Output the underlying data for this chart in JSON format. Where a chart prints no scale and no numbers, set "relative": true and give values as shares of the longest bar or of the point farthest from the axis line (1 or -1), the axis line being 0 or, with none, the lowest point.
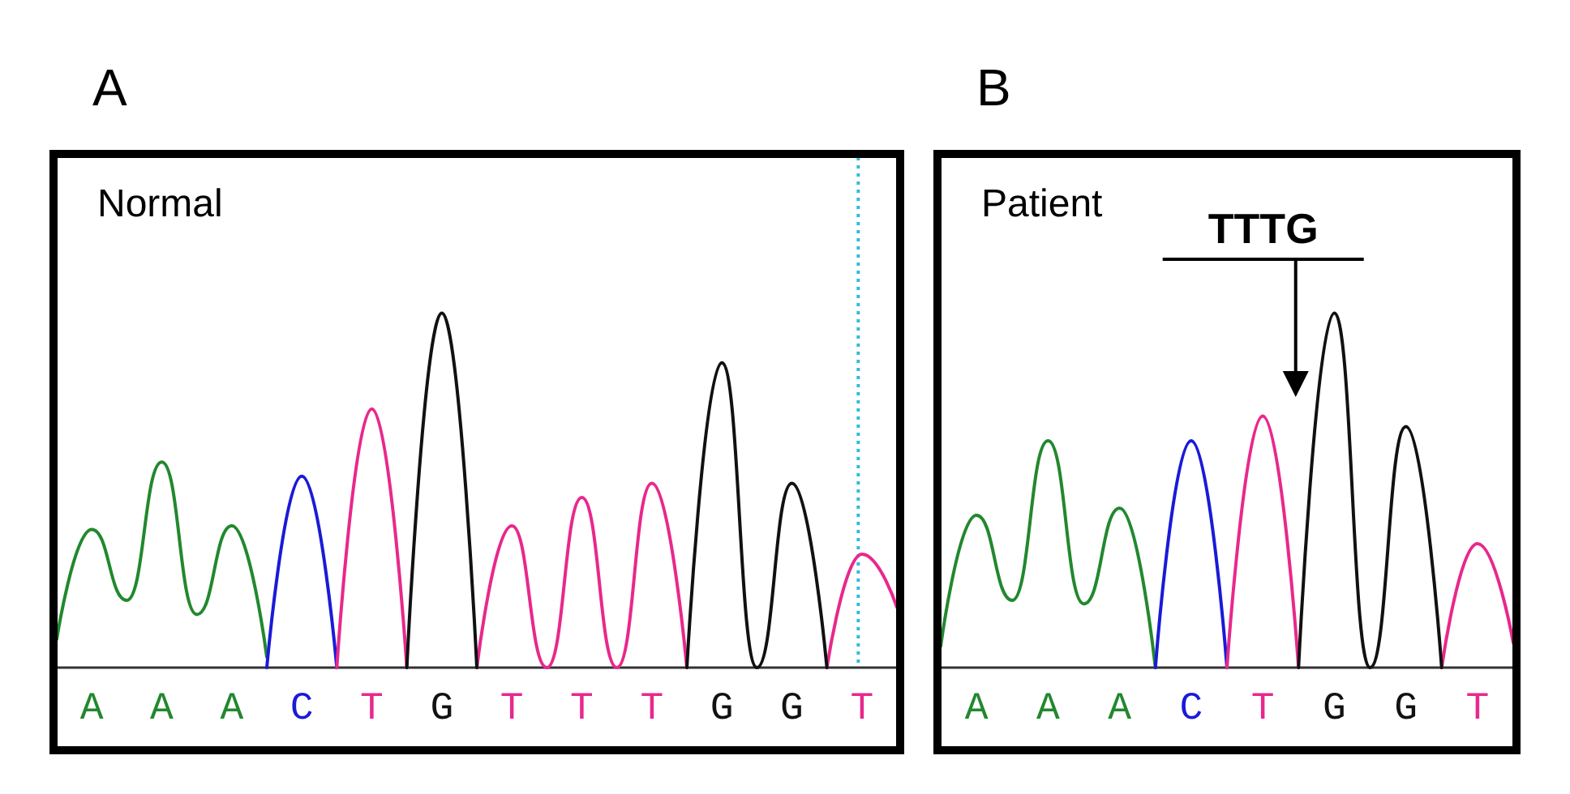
{
  "chart_data": [
    {
      "type": "line",
      "title": "Normal",
      "relative": true,
      "annotations": [
        "A"
      ],
      "categories": [
        null,
        "A",
        null,
        "A",
        null,
        "A",
        null,
        "C",
        null,
        "T",
        null,
        "G",
        null,
        "T",
        null,
        "T",
        null,
        "T",
        null,
        "G",
        null,
        "G",
        null,
        "T",
        null
      ],
      "grid": false,
      "marker": "none",
      "line_style": "solid",
      "series": [
        {
          "color": "#22882e",
          "values": [
            0.08,
            0.39,
            0.19,
            0.58,
            0.15,
            0.4,
            0.03,
            null,
            null,
            null,
            null,
            null,
            null,
            null,
            null,
            null,
            null,
            null,
            null,
            null,
            null,
            null,
            null,
            null,
            null
          ]
        },
        {
          "color": "#1a1ad8",
          "values": [
            null,
            null,
            null,
            null,
            null,
            null,
            0,
            0.54,
            0,
            null,
            null,
            null,
            null,
            null,
            null,
            null,
            null,
            null,
            null,
            null,
            null,
            null,
            null,
            null,
            null
          ]
        },
        {
          "color": "#e8288c",
          "values": [
            null,
            null,
            null,
            null,
            null,
            null,
            null,
            null,
            0,
            0.73,
            0,
            null,
            0,
            0.4,
            0,
            0.48,
            0,
            0.52,
            0,
            null,
            null,
            null,
            0,
            0.32,
            0.17
          ]
        },
        {
          "color": "#111111",
          "values": [
            null,
            null,
            null,
            null,
            null,
            null,
            null,
            null,
            null,
            null,
            0,
            1,
            0,
            null,
            null,
            null,
            null,
            null,
            0,
            0.86,
            0,
            0.52,
            0,
            null,
            null
          ]
        }
      ]
    },
    {
      "type": "line",
      "title": "Patient",
      "relative": true,
      "annotations": [
        "B",
        "TTTG"
      ],
      "categories": [
        null,
        "A",
        null,
        "A",
        null,
        "A",
        null,
        "C",
        null,
        "T",
        null,
        "G",
        null,
        "G",
        null,
        "T",
        null
      ],
      "grid": false,
      "marker": "none",
      "line_style": "solid",
      "series": [
        {
          "color": "#22882e",
          "values": [
            0.06,
            0.43,
            0.19,
            0.64,
            0.18,
            0.45,
            0,
            null,
            null,
            null,
            null,
            null,
            null,
            null,
            null,
            null,
            null
          ]
        },
        {
          "color": "#1a1ad8",
          "values": [
            null,
            null,
            null,
            null,
            null,
            null,
            0,
            0.64,
            0,
            null,
            null,
            null,
            null,
            null,
            null,
            null,
            null
          ]
        },
        {
          "color": "#e8288c",
          "values": [
            null,
            null,
            null,
            null,
            null,
            null,
            null,
            null,
            0,
            0.71,
            0,
            null,
            null,
            null,
            0,
            0.35,
            0.07
          ]
        },
        {
          "color": "#111111",
          "values": [
            null,
            null,
            null,
            null,
            null,
            null,
            null,
            null,
            null,
            null,
            0,
            1,
            0,
            0.68,
            0,
            null,
            null
          ]
        }
      ]
    }
  ]
}
